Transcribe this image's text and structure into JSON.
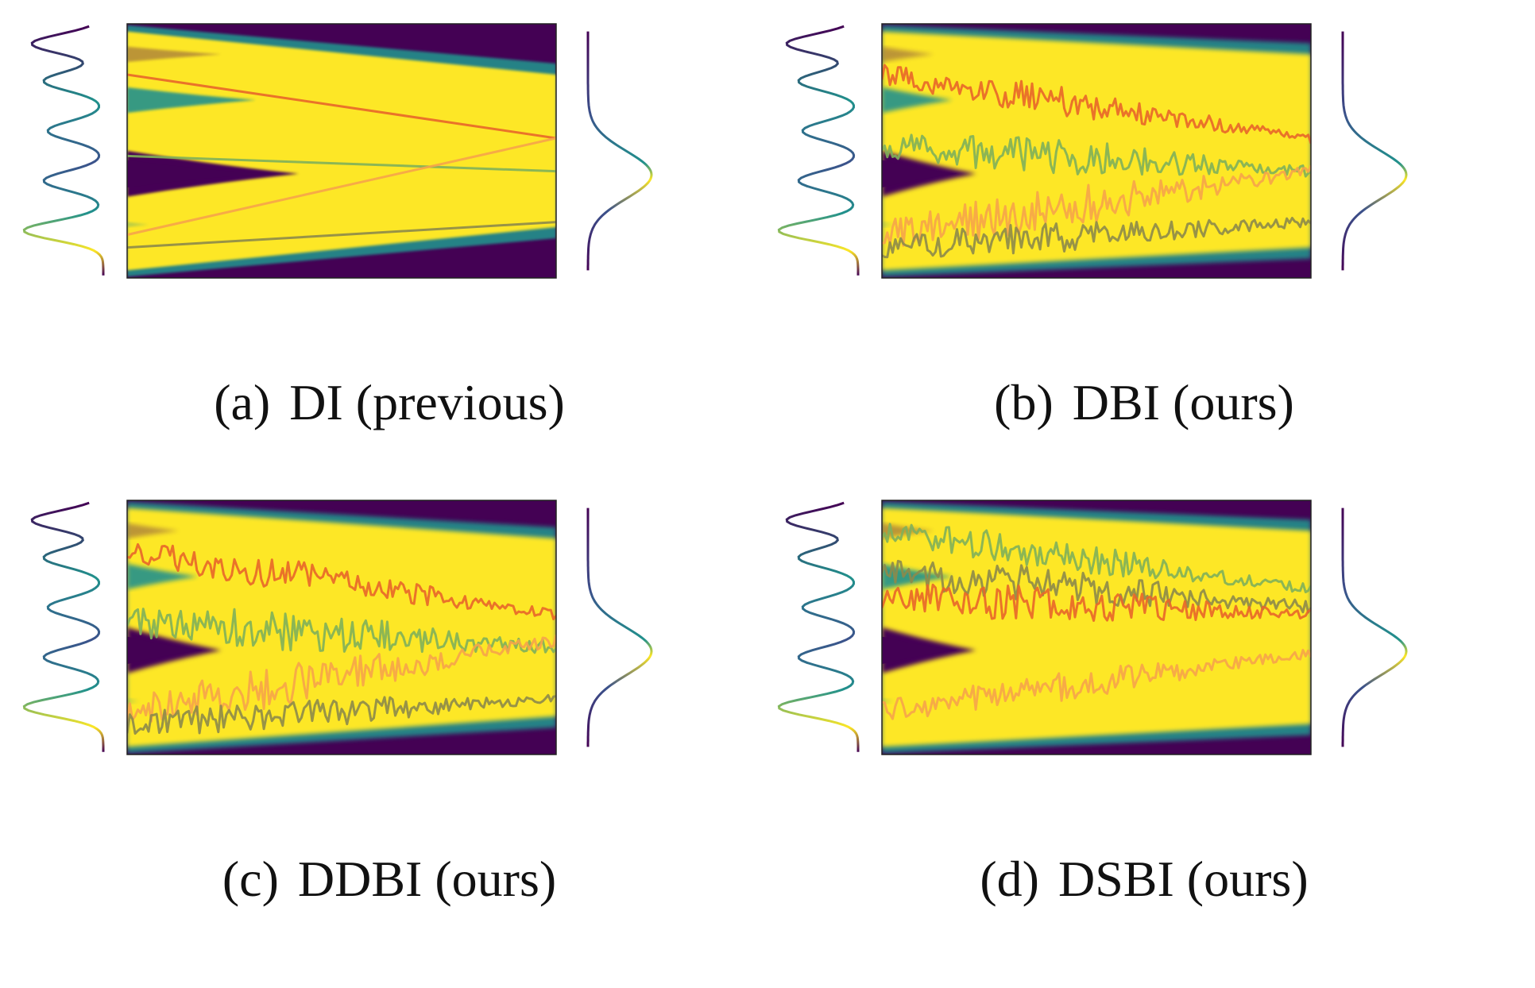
{
  "colors": {
    "low": "#440154",
    "mid": "#21918c",
    "mid2": "#3b528b",
    "high": "#fde725",
    "lime": "#5ec962",
    "traj_red": "#e8662a",
    "traj_orange": "#f6a44a",
    "traj_green": "#7fb05a",
    "traj_olive": "#8d8a4a"
  },
  "chart_data": [
    {
      "type": "heatmap",
      "tag": "(a)",
      "title": "DI (previous)",
      "source_density_peaks": [
        1.0,
        0.85,
        0.55,
        0.42,
        0.5
      ],
      "target_density": "single broad peak",
      "start_positions": [
        0.05,
        0.18,
        0.37,
        0.55,
        0.72,
        0.88
      ],
      "end_half_width": 0.3,
      "noise": 0.0,
      "source_modes_visible": true,
      "trajectories": [
        {
          "color": "traj_red",
          "y0": 0.2,
          "y1": 0.45,
          "noise": 0
        },
        {
          "color": "traj_green",
          "y0": 0.52,
          "y1": 0.58,
          "noise": 0
        },
        {
          "color": "traj_orange",
          "y0": 0.83,
          "y1": 0.45,
          "noise": 0
        },
        {
          "color": "traj_olive",
          "y0": 0.88,
          "y1": 0.78,
          "noise": 0
        }
      ]
    },
    {
      "type": "heatmap",
      "tag": "(b)",
      "title": "DBI (ours)",
      "start_positions": [
        0.05,
        0.18,
        0.37,
        0.55,
        0.72,
        0.88
      ],
      "end_half_width": 0.38,
      "noise": 1.0,
      "source_modes_visible": true,
      "trajectories": [
        {
          "color": "traj_red",
          "y0": 0.2,
          "y1": 0.45,
          "noise": 0.06
        },
        {
          "color": "traj_green",
          "y0": 0.48,
          "y1": 0.58,
          "noise": 0.07
        },
        {
          "color": "traj_orange",
          "y0": 0.83,
          "y1": 0.58,
          "noise": 0.08
        },
        {
          "color": "traj_olive",
          "y0": 0.88,
          "y1": 0.78,
          "noise": 0.06
        }
      ]
    },
    {
      "type": "heatmap",
      "tag": "(c)",
      "title": "DDBI (ours)",
      "start_positions": [
        0.05,
        0.18,
        0.37,
        0.55,
        0.72,
        0.88
      ],
      "end_half_width": 0.35,
      "noise": 1.0,
      "source_modes_visible": true,
      "trajectories": [
        {
          "color": "traj_red",
          "y0": 0.2,
          "y1": 0.45,
          "noise": 0.06
        },
        {
          "color": "traj_green",
          "y0": 0.48,
          "y1": 0.58,
          "noise": 0.08
        },
        {
          "color": "traj_orange",
          "y0": 0.83,
          "y1": 0.55,
          "noise": 0.08
        },
        {
          "color": "traj_olive",
          "y0": 0.88,
          "y1": 0.78,
          "noise": 0.06
        }
      ]
    },
    {
      "type": "heatmap",
      "tag": "(d)",
      "title": "DSBI (ours)",
      "start_positions": [
        0.05,
        0.18,
        0.37,
        0.55,
        0.72,
        0.88
      ],
      "end_half_width": 0.38,
      "noise": 1.0,
      "source_modes_visible": true,
      "trajectories": [
        {
          "color": "traj_green",
          "y0": 0.12,
          "y1": 0.35,
          "noise": 0.06
        },
        {
          "color": "traj_olive",
          "y0": 0.28,
          "y1": 0.42,
          "noise": 0.07
        },
        {
          "color": "traj_red",
          "y0": 0.38,
          "y1": 0.45,
          "noise": 0.07
        },
        {
          "color": "traj_orange",
          "y0": 0.83,
          "y1": 0.6,
          "noise": 0.06
        }
      ]
    }
  ]
}
